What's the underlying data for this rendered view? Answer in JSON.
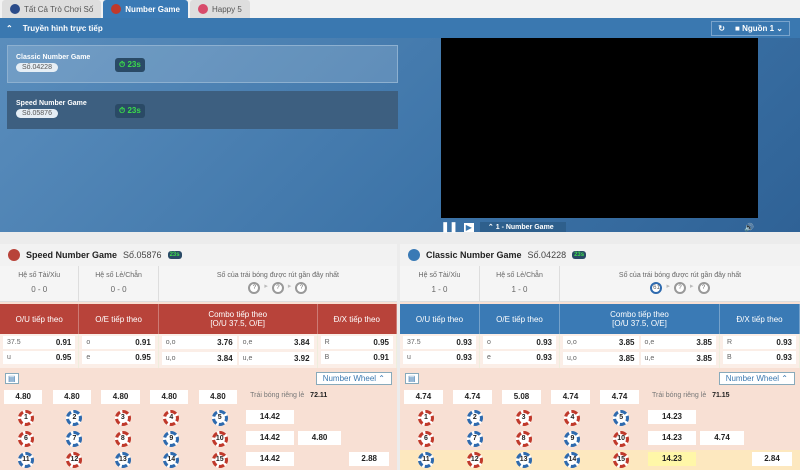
{
  "tabs": [
    {
      "label": "Tất Cả Trò Chơi Số",
      "color": "#2b4c8a"
    },
    {
      "label": "Number Game",
      "color": "#c0392b"
    },
    {
      "label": "Happy 5",
      "color": "#d84b6b"
    }
  ],
  "live": {
    "title": "Truyền hình trực tiếp",
    "source": "Nguồn 1",
    "channel": "1 - Number Game",
    "games": [
      {
        "name": "Classic Number Game",
        "so": "Số.04228",
        "timer": "23s"
      },
      {
        "name": "Speed Number Game",
        "so": "Số.05876",
        "timer": "23s"
      }
    ]
  },
  "panels": [
    {
      "title": "Speed Number Game",
      "so": "Số.05876",
      "timer": "23s",
      "accent": "#b8433a",
      "stats": {
        "tx_label": "Hệ số Tài/Xỉu",
        "tx": "0 - 0",
        "lc_label": "Hệ số Lẻ/Chẵn",
        "lc": "0 - 0",
        "recent_label": "Số của trái bóng được rút gần đây nhất",
        "recent": [
          "?",
          "?",
          "?"
        ]
      },
      "headers": [
        "O/U tiếp theo",
        "O/E tiếp theo",
        "Combo tiếp theo\n[O/U 37.5, O/E]",
        "Đ/X tiếp theo"
      ],
      "ou": [
        [
          "37.5",
          "0.91"
        ],
        [
          "u",
          "0.95"
        ]
      ],
      "oe": [
        [
          "o",
          "0.91"
        ],
        [
          "e",
          "0.95"
        ]
      ],
      "combo": [
        [
          "o,o",
          "3.76"
        ],
        [
          "o,e",
          "3.84"
        ],
        [
          "u,o",
          "3.84"
        ],
        [
          "u,e",
          "3.92"
        ]
      ],
      "dx": [
        [
          "R",
          "0.95"
        ],
        [
          "B",
          "0.91"
        ]
      ],
      "wheel": "Number Wheel",
      "cols": [
        "4.80",
        "4.80",
        "4.80",
        "4.80",
        "4.80"
      ],
      "single_label": "Trái bóng riêng lẻ",
      "single": "72.11",
      "rows": [
        "14.42",
        "14.42",
        "14.42"
      ],
      "mid": "4.80",
      "last": "2.88"
    },
    {
      "title": "Classic Number Game",
      "so": "Số.04228",
      "timer": "23s",
      "accent": "#3a7ab5",
      "stats": {
        "tx_label": "Hệ số Tài/Xỉu",
        "tx": "1 - 0",
        "lc_label": "Hệ số Lẻ/Chẵn",
        "lc": "1 - 0",
        "recent_label": "Số của trái bóng được rút gần đây nhất",
        "recent": [
          "61",
          "?",
          "?"
        ]
      },
      "headers": [
        "O/U tiếp theo",
        "O/E tiếp theo",
        "Combo tiếp theo\n[O/U 37.5, O/E]",
        "Đ/X tiếp theo"
      ],
      "ou": [
        [
          "37.5",
          "0.93"
        ],
        [
          "u",
          "0.93"
        ]
      ],
      "oe": [
        [
          "o",
          "0.93"
        ],
        [
          "e",
          "0.93"
        ]
      ],
      "combo": [
        [
          "o,o",
          "3.85"
        ],
        [
          "o,e",
          "3.85"
        ],
        [
          "u,o",
          "3.85"
        ],
        [
          "u,e",
          "3.85"
        ]
      ],
      "dx": [
        [
          "R",
          "0.93"
        ],
        [
          "B",
          "0.93"
        ]
      ],
      "wheel": "Number Wheel",
      "cols": [
        "4.74",
        "4.74",
        "5.08",
        "4.74",
        "4.74"
      ],
      "single_label": "Trái bóng riêng lẻ",
      "single": "71.15",
      "rows": [
        "14.23",
        "14.23",
        "14.23"
      ],
      "mid": "4.74",
      "last": "2.84"
    }
  ],
  "balls": [
    {
      "n": "1",
      "c": "r"
    },
    {
      "n": "2",
      "c": "b"
    },
    {
      "n": "3",
      "c": "r"
    },
    {
      "n": "4",
      "c": "r"
    },
    {
      "n": "5",
      "c": "b"
    },
    {
      "n": "6",
      "c": "r"
    },
    {
      "n": "7",
      "c": "b"
    },
    {
      "n": "8",
      "c": "r"
    },
    {
      "n": "9",
      "c": "b"
    },
    {
      "n": "10",
      "c": "r"
    },
    {
      "n": "11",
      "c": "b"
    },
    {
      "n": "12",
      "c": "r"
    },
    {
      "n": "13",
      "c": "b"
    },
    {
      "n": "14",
      "c": "b"
    },
    {
      "n": "15",
      "c": "r"
    }
  ]
}
